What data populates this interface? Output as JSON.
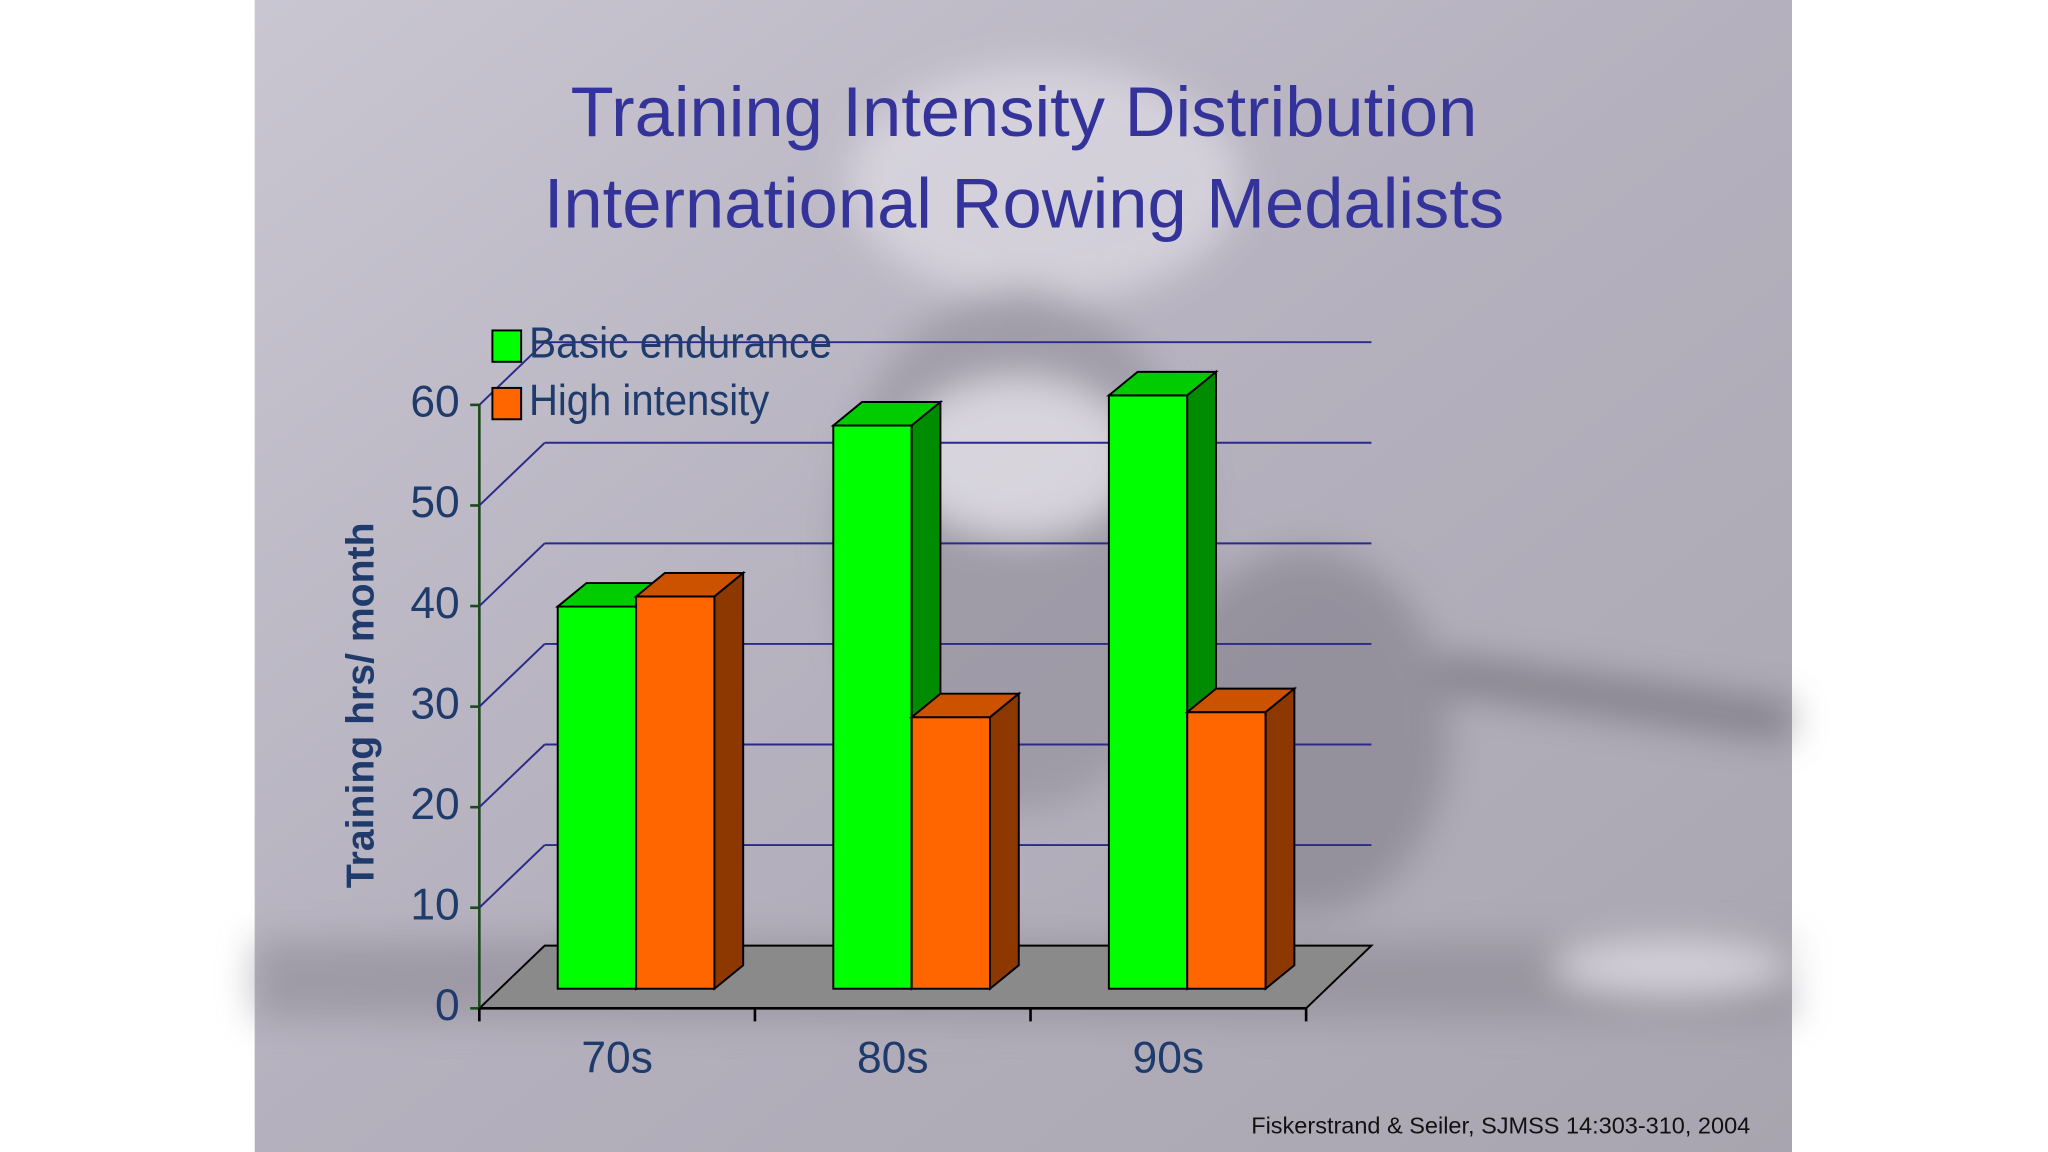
{
  "chart_data": {
    "type": "bar3d",
    "title": [
      "Training Intensity Distribution",
      "International Rowing Medalists"
    ],
    "y_label": "Training hrs/ month",
    "source": "Fiskerstrand & Seiler, SJMSS 14:303-310, 2004",
    "categories": [
      "70s",
      "80s",
      "90s"
    ],
    "series": [
      {
        "name": "Basic endurance",
        "color": "#00ff00",
        "values": [
          38,
          56,
          59
        ]
      },
      {
        "name": "High intensity",
        "color": "#ff6600",
        "values": [
          39,
          27,
          27.5
        ]
      }
    ],
    "ylim": [
      0,
      60
    ],
    "yticks": [
      0,
      10,
      20,
      30,
      40,
      50,
      60
    ],
    "grid": true,
    "legend": "top-left"
  }
}
